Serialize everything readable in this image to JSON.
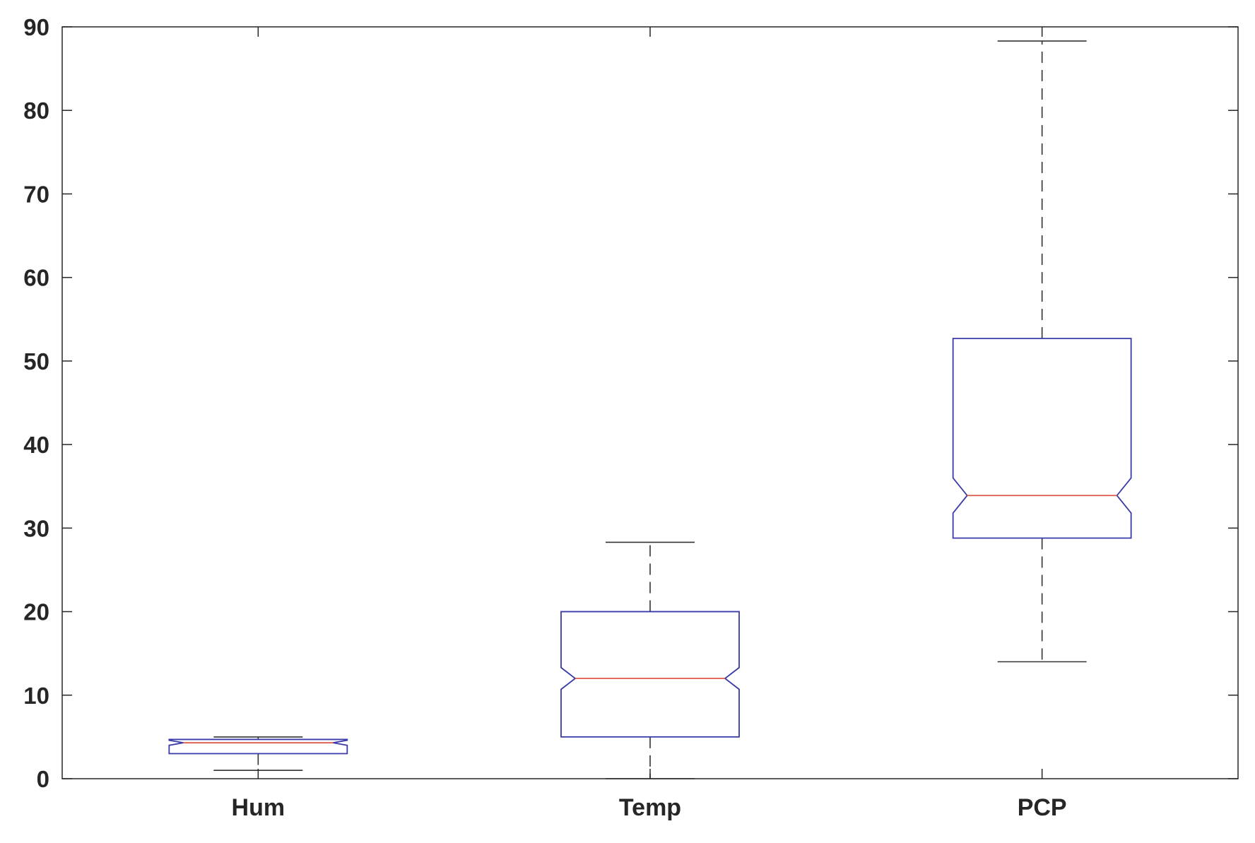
{
  "chart_data": {
    "type": "boxplot",
    "title": "",
    "xlabel": "",
    "ylabel": "",
    "ylim": [
      0,
      90
    ],
    "yticks": [
      0,
      10,
      20,
      30,
      40,
      50,
      60,
      70,
      80,
      90
    ],
    "categories": [
      "Hum",
      "Temp",
      "PCP"
    ],
    "notched": true,
    "grid": false,
    "boxes": [
      {
        "category": "Hum",
        "whisker_low": 1.0,
        "q1": 3.0,
        "median": 4.3,
        "q3": 4.7,
        "whisker_high": 5.0,
        "notch_low": 4.0,
        "notch_high": 4.6
      },
      {
        "category": "Temp",
        "whisker_low": 0.0,
        "q1": 5.0,
        "median": 12.0,
        "q3": 20.0,
        "whisker_high": 28.3,
        "notch_low": 10.7,
        "notch_high": 13.3
      },
      {
        "category": "PCP",
        "whisker_low": 14.0,
        "q1": 28.8,
        "median": 33.9,
        "q3": 52.7,
        "whisker_high": 88.3,
        "notch_low": 31.8,
        "notch_high": 36.0
      }
    ],
    "colors": {
      "box": "#3a3aa8",
      "median": "#e0584a",
      "whisker": "#333333",
      "axis": "#262626",
      "text": "#262626"
    }
  }
}
